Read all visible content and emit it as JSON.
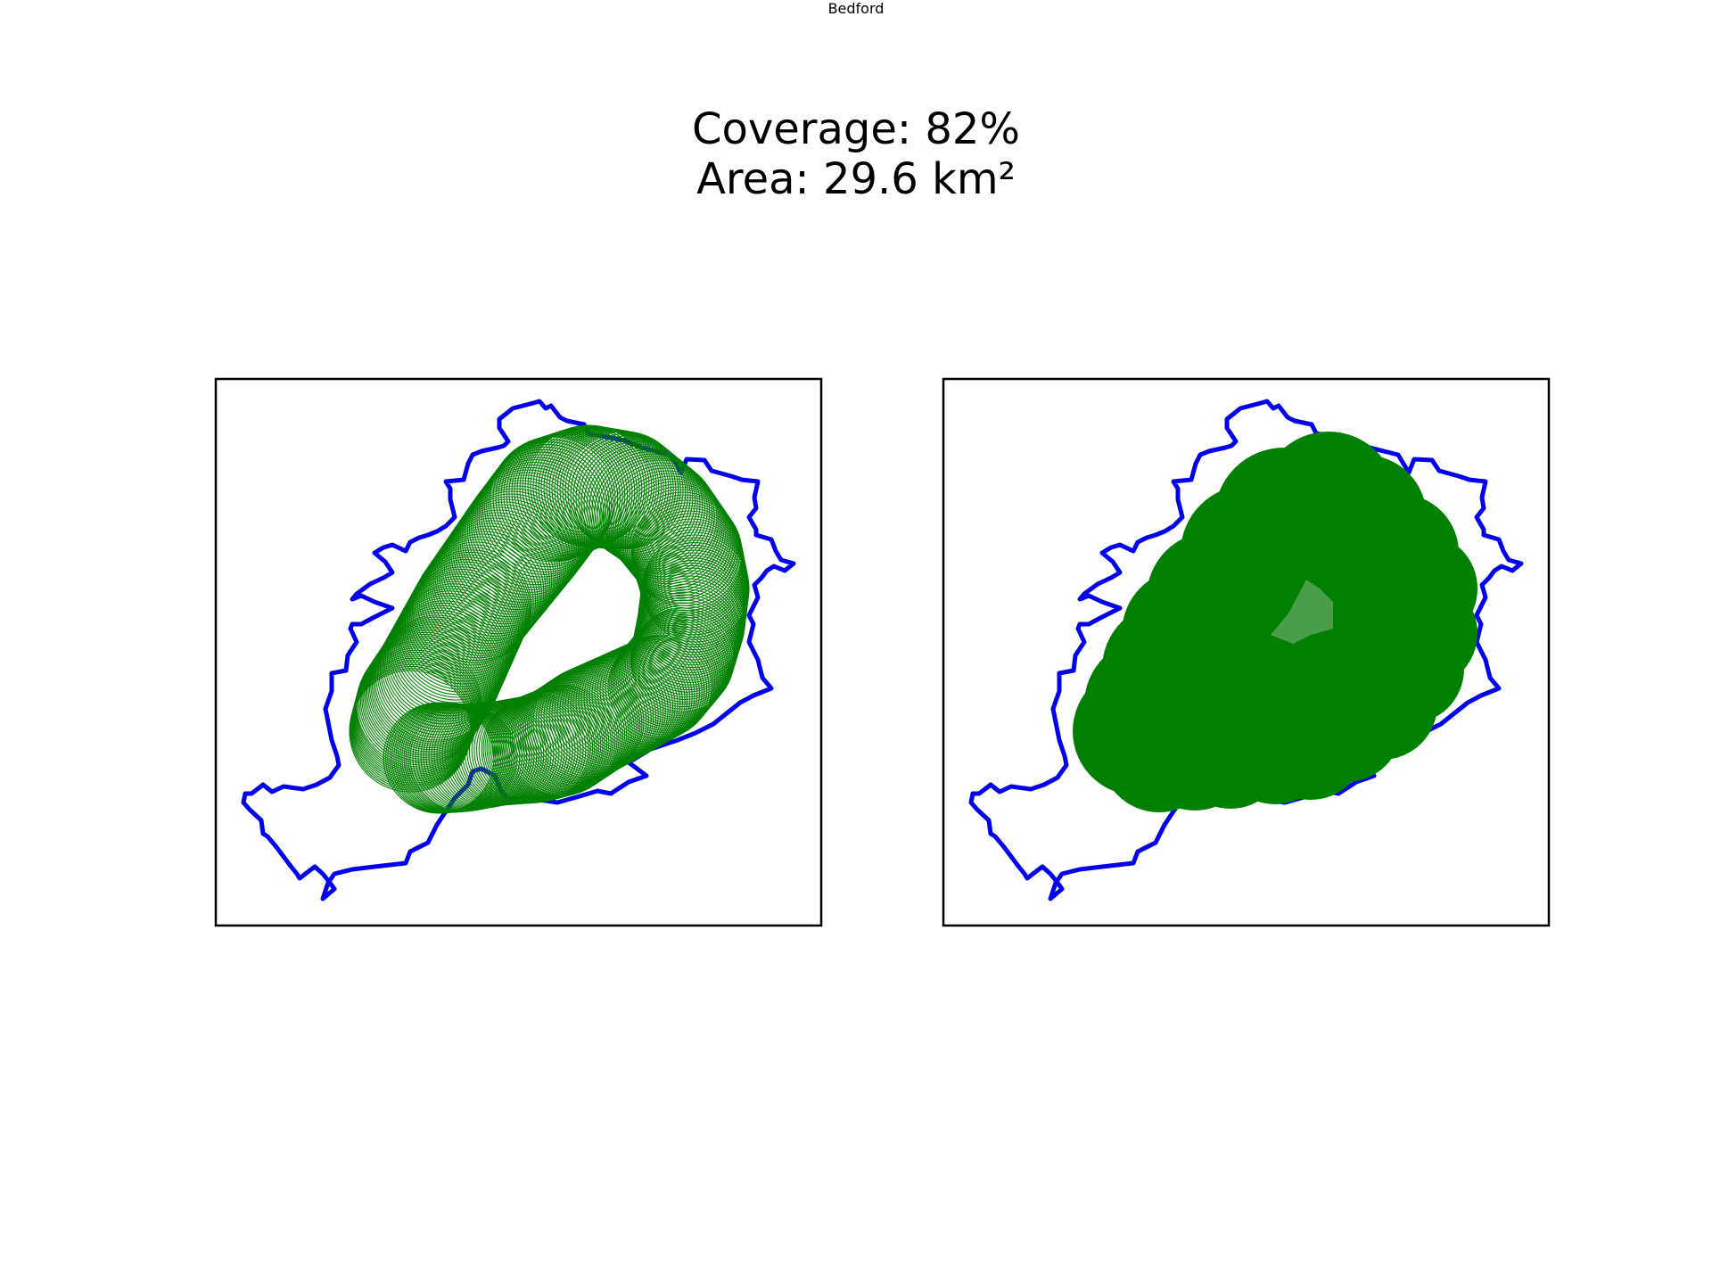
{
  "title": "Bedford",
  "coverage_text": "Coverage: 82%",
  "area_text": "Area: 29.6 km²",
  "colors": {
    "boundary": "#0000ee",
    "coverage": "#008000",
    "frame": "#000000",
    "background": "#ffffff"
  },
  "panels": [
    {
      "name": "coverage-outline-panel",
      "style": "outline"
    },
    {
      "name": "coverage-filled-panel",
      "style": "filled"
    }
  ]
}
